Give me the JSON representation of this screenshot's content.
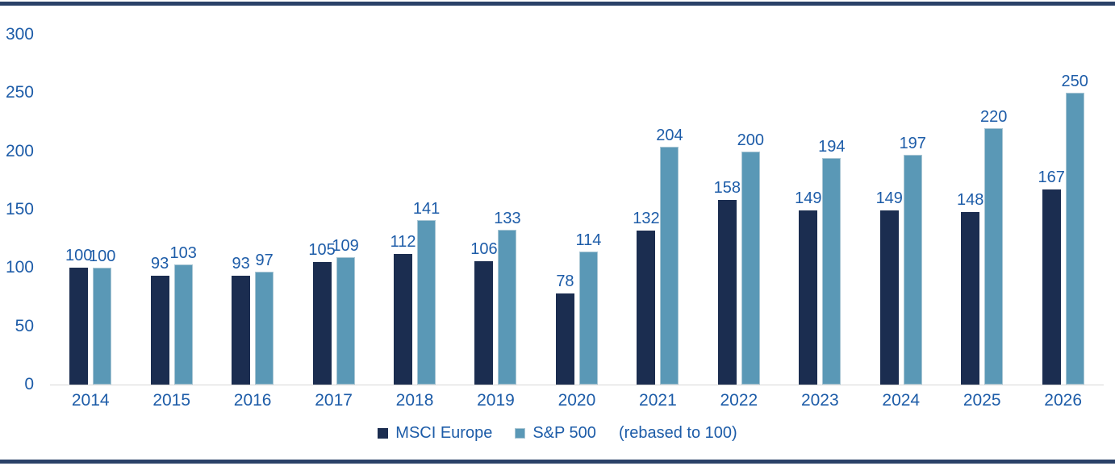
{
  "chart_data": {
    "type": "bar",
    "title": "",
    "xlabel": "",
    "ylabel": "",
    "categories": [
      "2014",
      "2015",
      "2016",
      "2017",
      "2018",
      "2019",
      "2020",
      "2021",
      "2022",
      "2023",
      "2024",
      "2025",
      "2026"
    ],
    "series": [
      {
        "name": "MSCI Europe",
        "color": "#1b2d50",
        "values": [
          100,
          93,
          93,
          105,
          112,
          106,
          78,
          132,
          158,
          149,
          149,
          148,
          167
        ]
      },
      {
        "name": "S&P 500",
        "color": "#5a98b6",
        "values": [
          100,
          103,
          97,
          109,
          141,
          133,
          114,
          204,
          200,
          194,
          197,
          220,
          250
        ]
      }
    ],
    "ylim": [
      0,
      300
    ],
    "yticks": [
      0,
      50,
      100,
      150,
      200,
      250,
      300
    ],
    "grid": false,
    "legend_position": "bottom",
    "legend_note": "(rebased to 100)",
    "data_labels": true
  },
  "colors": {
    "text_blue": "#1d5ca8",
    "axis_line": "#d6d6d6",
    "rule": "#2a4168",
    "bar_dark": "#1b2d50",
    "bar_light": "#5a98b6",
    "bar_light_border": "#a9c6d4",
    "background": "#ffffff"
  }
}
